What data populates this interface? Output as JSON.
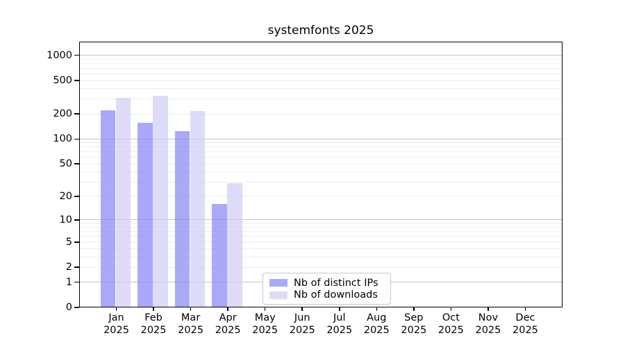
{
  "chart_data": {
    "type": "bar",
    "title": "systemfonts 2025",
    "categories": [
      "Jan 2025",
      "Feb 2025",
      "Mar 2025",
      "Apr 2025",
      "May 2025",
      "Jun 2025",
      "Jul 2025",
      "Aug 2025",
      "Sep 2025",
      "Oct 2025",
      "Nov 2025",
      "Dec 2025"
    ],
    "series": [
      {
        "name": "Nb of distinct IPs",
        "color": "#8585f5",
        "values": [
          220,
          157,
          125,
          16,
          null,
          null,
          null,
          null,
          null,
          null,
          null,
          null
        ]
      },
      {
        "name": "Nb of downloads",
        "color": "#cdcdf5",
        "values": [
          310,
          330,
          218,
          29,
          null,
          null,
          null,
          null,
          null,
          null,
          null,
          null
        ]
      }
    ],
    "fill_alpha": 0.7,
    "yscale": "log1p",
    "ylim": [
      0,
      1455
    ],
    "yticks": [
      0,
      1,
      2,
      5,
      10,
      20,
      50,
      100,
      200,
      500,
      1000
    ],
    "grid": {
      "major_at": [
        1,
        10,
        100,
        1000
      ],
      "minor_at": [
        2,
        3,
        4,
        5,
        6,
        7,
        8,
        9,
        20,
        30,
        40,
        50,
        60,
        70,
        80,
        90,
        200,
        300,
        400,
        500,
        600,
        700,
        800,
        900
      ],
      "major_color": "#c4c4c4",
      "minor_color": "#ededed"
    },
    "legend": {
      "position": "bottom-center"
    },
    "frame_color": "#000000",
    "background_color": "#ffffff"
  }
}
